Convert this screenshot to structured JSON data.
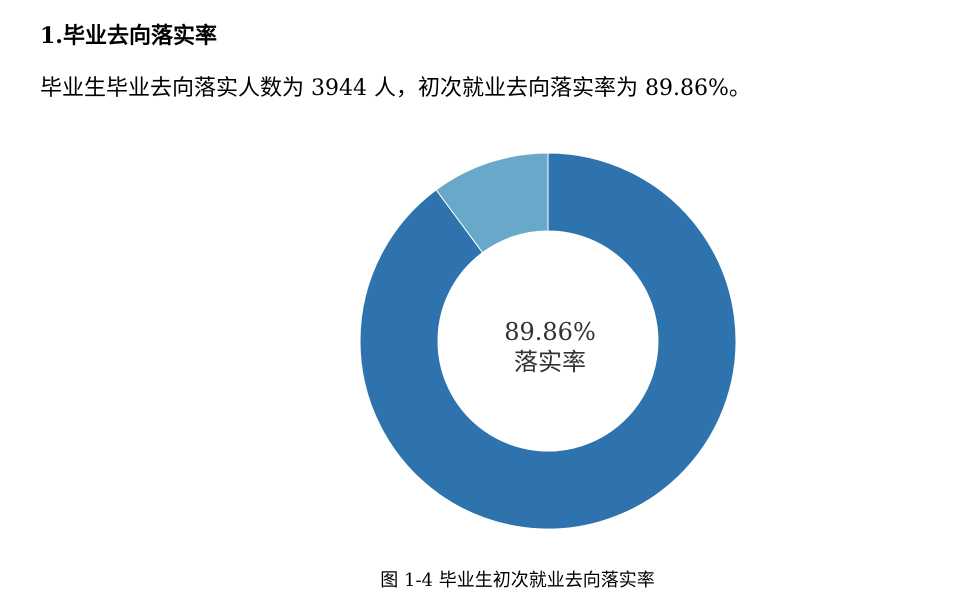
{
  "heading": "1.毕业去向落实率",
  "paragraph": "毕业生毕业去向落实人数为 3944 人，初次就业去向落实率为 89.86%。",
  "caption": "图 1-4  毕业生初次就业去向落实率",
  "chart_data": {
    "type": "pie",
    "variant": "donut",
    "values": [
      89.86,
      10.14
    ],
    "colors": [
      "#2E73AE",
      "#68A9C9"
    ],
    "center_label": {
      "value": "89.86%",
      "text": "落实率"
    },
    "legend": "none"
  }
}
